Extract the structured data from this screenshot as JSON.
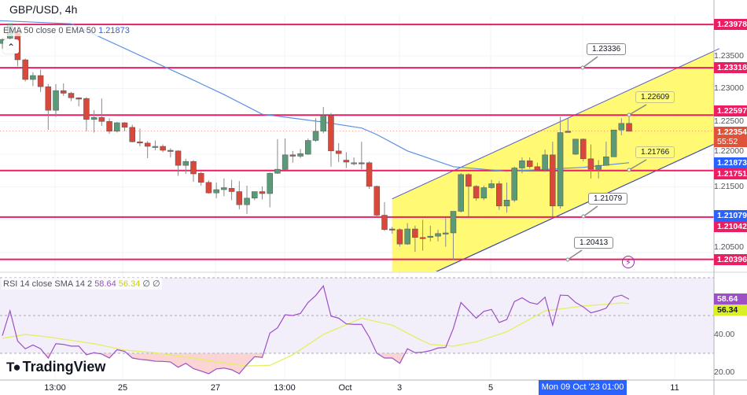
{
  "header": {
    "title": "GBP/USD, 4h"
  },
  "ema_legend": {
    "label": "EMA 50 close 0 EMA 50",
    "value": "1.21873"
  },
  "rsi_legend": {
    "label": "RSI 14 close SMA 14 2",
    "rsi_value": "58.64",
    "sma_value": "56.34",
    "extra1": "∅",
    "extra2": "∅"
  },
  "collapse_icon": "chevron-up-icon",
  "colors": {
    "up": "#5b9a78",
    "down": "#d9483b",
    "level_line": "#e91e63",
    "ema": "#5b8fe6",
    "rsi": "#9c4fc7",
    "rsi_sma": "#e6ee6a",
    "channel_fill": "#fff85a",
    "current_price": "#e0533b"
  },
  "price_axis": {
    "ticks": [
      "1.23500",
      "1.23000",
      "1.22500",
      "1.22000",
      "1.21500",
      "1.20500"
    ],
    "badges": {
      "l1": "1.23978",
      "l2": "1.23318",
      "l3": "1.22597",
      "current": "1.22354",
      "countdown": "55:52",
      "ema": "1.21873",
      "l4": "1.21751",
      "ch": "1.21079",
      "l5": "1.21042",
      "l6": "1.20396"
    }
  },
  "rsi_axis": {
    "ticks": [
      "40.00",
      "20.00"
    ],
    "rsi_badge": "58.64",
    "sma_badge": "56.34"
  },
  "time_axis": {
    "ticks": [
      "13:00",
      "25",
      "27",
      "13:00",
      "Oct",
      "3",
      "5",
      "11"
    ],
    "crosshair_label": "Mon 09 Oct '23   01:00"
  },
  "callouts": [
    "1.23336",
    "1.22609",
    "1.21766",
    "1.21079",
    "1.20413"
  ],
  "logo": {
    "text": "TradingView"
  },
  "chart_data": [
    {
      "type": "candlestick",
      "title": "GBP/USD, 4h",
      "ylim": [
        1.203,
        1.24
      ],
      "levels": [
        1.23978,
        1.23318,
        1.22597,
        1.21751,
        1.21042,
        1.20396
      ],
      "channel": {
        "start_candle": 51,
        "end_candle": 93.8,
        "upper": [
          1.2132,
          1.2361
        ],
        "lower": [
          1.199,
          1.2219
        ]
      },
      "candles_ohlc": [
        [
          1.2369,
          1.2377,
          1.2361,
          1.2375
        ],
        [
          1.2377,
          1.2399,
          1.2375,
          1.2399
        ],
        [
          1.2387,
          1.2399,
          1.2334,
          1.2344
        ],
        [
          1.2344,
          1.2346,
          1.2311,
          1.2314
        ],
        [
          1.2314,
          1.2325,
          1.2304,
          1.232
        ],
        [
          1.232,
          1.2329,
          1.2295,
          1.2303
        ],
        [
          1.2303,
          1.2307,
          1.2237,
          1.2267
        ],
        [
          1.2267,
          1.2307,
          1.2257,
          1.2297
        ],
        [
          1.2297,
          1.2308,
          1.2289,
          1.2293
        ],
        [
          1.2293,
          1.2295,
          1.2281,
          1.2286
        ],
        [
          1.2286,
          1.2287,
          1.2273,
          1.2284
        ],
        [
          1.2285,
          1.2287,
          1.2235,
          1.2253
        ],
        [
          1.2253,
          1.2267,
          1.2233,
          1.2256
        ],
        [
          1.2256,
          1.2285,
          1.2243,
          1.225
        ],
        [
          1.225,
          1.2255,
          1.2231,
          1.2235
        ],
        [
          1.2235,
          1.2249,
          1.2233,
          1.2248
        ],
        [
          1.2248,
          1.2249,
          1.2235,
          1.2241
        ],
        [
          1.2241,
          1.2245,
          1.2218,
          1.2219
        ],
        [
          1.2219,
          1.2239,
          1.2212,
          1.2217
        ],
        [
          1.2217,
          1.222,
          1.2194,
          1.2212
        ],
        [
          1.2212,
          1.2221,
          1.2206,
          1.2212
        ],
        [
          1.2212,
          1.2215,
          1.2203,
          1.2206
        ],
        [
          1.2206,
          1.2209,
          1.2195,
          1.2205
        ],
        [
          1.2205,
          1.2206,
          1.2167,
          1.2183
        ],
        [
          1.2183,
          1.2193,
          1.217,
          1.2189
        ],
        [
          1.2189,
          1.2191,
          1.2158,
          1.217
        ],
        [
          1.2171,
          1.2173,
          1.2152,
          1.2157
        ],
        [
          1.2157,
          1.216,
          1.214,
          1.2141
        ],
        [
          1.2141,
          1.2157,
          1.2133,
          1.2146
        ],
        [
          1.2146,
          1.2163,
          1.2136,
          1.2149
        ],
        [
          1.2148,
          1.2161,
          1.213,
          1.2143
        ],
        [
          1.2143,
          1.2159,
          1.2116,
          1.2123
        ],
        [
          1.2123,
          1.2152,
          1.2109,
          1.2133
        ],
        [
          1.2133,
          1.2142,
          1.213,
          1.2143
        ],
        [
          1.2143,
          1.2151,
          1.2131,
          1.214
        ],
        [
          1.214,
          1.2172,
          1.2119,
          1.2171
        ],
        [
          1.2171,
          1.2223,
          1.217,
          1.2177
        ],
        [
          1.2177,
          1.2224,
          1.2176,
          1.2199
        ],
        [
          1.2199,
          1.2205,
          1.2187,
          1.2197
        ],
        [
          1.2197,
          1.2208,
          1.2194,
          1.2201
        ],
        [
          1.22,
          1.2224,
          1.2199,
          1.2221
        ],
        [
          1.2221,
          1.2255,
          1.2219,
          1.2235
        ],
        [
          1.2235,
          1.2272,
          1.2232,
          1.2259
        ],
        [
          1.2259,
          1.2263,
          1.2181,
          1.2205
        ],
        [
          1.2205,
          1.2217,
          1.2188,
          1.2201
        ],
        [
          1.2191,
          1.2203,
          1.2179,
          1.2188
        ],
        [
          1.2187,
          1.2195,
          1.2183,
          1.2187
        ],
        [
          1.2187,
          1.2219,
          1.2177,
          1.2186
        ],
        [
          1.2187,
          1.2189,
          1.2147,
          1.2151
        ],
        [
          1.2151,
          1.2152,
          1.2105,
          1.2107
        ],
        [
          1.2107,
          1.2127,
          1.2083,
          1.2085
        ],
        [
          1.2086,
          1.2089,
          1.2079,
          1.2085
        ],
        [
          1.2085,
          1.2087,
          1.2059,
          1.2063
        ],
        [
          1.2063,
          1.2095,
          1.2062,
          1.2086
        ],
        [
          1.2086,
          1.2091,
          1.2051,
          1.2073
        ],
        [
          1.2073,
          1.21,
          1.2053,
          1.2072
        ],
        [
          1.2074,
          1.2091,
          1.2067,
          1.2075
        ],
        [
          1.2075,
          1.2085,
          1.2067,
          1.2079
        ],
        [
          1.2079,
          1.2103,
          1.2059,
          1.208
        ],
        [
          1.208,
          1.2113,
          1.2039,
          1.2113
        ],
        [
          1.2113,
          1.2171,
          1.2111,
          1.2169
        ],
        [
          1.2169,
          1.2171,
          1.2105,
          1.2151
        ],
        [
          1.2151,
          1.2153,
          1.2129,
          1.2133
        ],
        [
          1.2133,
          1.2152,
          1.213,
          1.2149
        ],
        [
          1.2149,
          1.2161,
          1.2147,
          1.2155
        ],
        [
          1.2155,
          1.2159,
          1.2115,
          1.2121
        ],
        [
          1.2121,
          1.2157,
          1.2111,
          1.213
        ],
        [
          1.213,
          1.2181,
          1.2127,
          1.2179
        ],
        [
          1.2179,
          1.2195,
          1.2171,
          1.219
        ],
        [
          1.219,
          1.2195,
          1.2178,
          1.2181
        ],
        [
          1.2181,
          1.2187,
          1.2175,
          1.2176
        ],
        [
          1.2176,
          1.2207,
          1.2173,
          1.2199
        ],
        [
          1.2199,
          1.2219,
          1.2105,
          1.2121
        ],
        [
          1.2121,
          1.2257,
          1.2117,
          1.2233
        ],
        [
          1.2235,
          1.2255,
          1.2233,
          1.2234
        ],
        [
          1.22,
          1.2223,
          1.2199,
          1.2223
        ],
        [
          1.2223,
          1.2224,
          1.2189,
          1.2193
        ],
        [
          1.2193,
          1.2215,
          1.2163,
          1.2177
        ],
        [
          1.2177,
          1.2191,
          1.2163,
          1.2183
        ],
        [
          1.2183,
          1.2219,
          1.2183,
          1.2196
        ],
        [
          1.2196,
          1.2237,
          1.2196,
          1.2237
        ],
        [
          1.2237,
          1.2255,
          1.2229,
          1.2247
        ],
        [
          1.2247,
          1.2257,
          1.2235,
          1.2235
        ]
      ],
      "ema50": [
        [
          9,
          1.2399
        ],
        [
          25,
          1.2313
        ],
        [
          29,
          1.2291
        ],
        [
          34,
          1.2261
        ],
        [
          42,
          1.2249
        ],
        [
          47,
          1.224
        ],
        [
          49,
          1.223
        ],
        [
          53,
          1.2205
        ],
        [
          59,
          1.2181
        ],
        [
          66,
          1.2174
        ],
        [
          76,
          1.218
        ],
        [
          82,
          1.2187
        ]
      ]
    },
    {
      "type": "line",
      "title": "RSI 14 close SMA 14 2",
      "ylim": [
        15,
        75
      ],
      "bands": [
        30,
        50,
        70
      ],
      "rsi": [
        39.3,
        52.5,
        36.5,
        32.4,
        34.4,
        32.4,
        27.5,
        35.1,
        34.7,
        33.8,
        33.8,
        29.2,
        30.3,
        29.6,
        27.5,
        31.9,
        31.0,
        27.5,
        26.8,
        26.4,
        25.8,
        25.7,
        25.4,
        22.6,
        24.7,
        21.9,
        20.6,
        19.2,
        21.7,
        22.2,
        21.3,
        19.2,
        24.0,
        28.2,
        27.8,
        40.7,
        43.5,
        50.4,
        50.0,
        51.1,
        56.9,
        60.6,
        65.7,
        49.7,
        48.6,
        45.6,
        45.3,
        45.3,
        38.6,
        30.0,
        27.5,
        27.5,
        24.7,
        32.4,
        30.3,
        30.6,
        31.4,
        32.8,
        33.1,
        43.1,
        56.9,
        52.8,
        48.6,
        52.2,
        53.2,
        46.3,
        47.9,
        57.4,
        59.4,
        56.9,
        56.0,
        59.7,
        44.9,
        60.8,
        60.6,
        56.9,
        54.6,
        51.4,
        52.5,
        53.9,
        59.7,
        60.8,
        58.64
      ],
      "sma": [
        [
          0,
          37.9
        ],
        [
          3,
          40.0
        ],
        [
          6,
          38.6
        ],
        [
          12,
          35.1
        ],
        [
          16,
          31.7
        ],
        [
          20,
          30.3
        ],
        [
          25,
          27.5
        ],
        [
          28,
          25.4
        ],
        [
          32,
          23.3
        ],
        [
          35,
          23.6
        ],
        [
          38,
          29.2
        ],
        [
          42,
          40.0
        ],
        [
          47,
          48.6
        ],
        [
          51,
          44.9
        ],
        [
          54,
          38.6
        ],
        [
          56,
          34.7
        ],
        [
          59,
          33.8
        ],
        [
          62,
          36.1
        ],
        [
          66,
          41.4
        ],
        [
          71,
          52.5
        ],
        [
          76,
          55.0
        ],
        [
          81,
          56.7
        ],
        [
          82,
          56.34
        ]
      ]
    }
  ]
}
